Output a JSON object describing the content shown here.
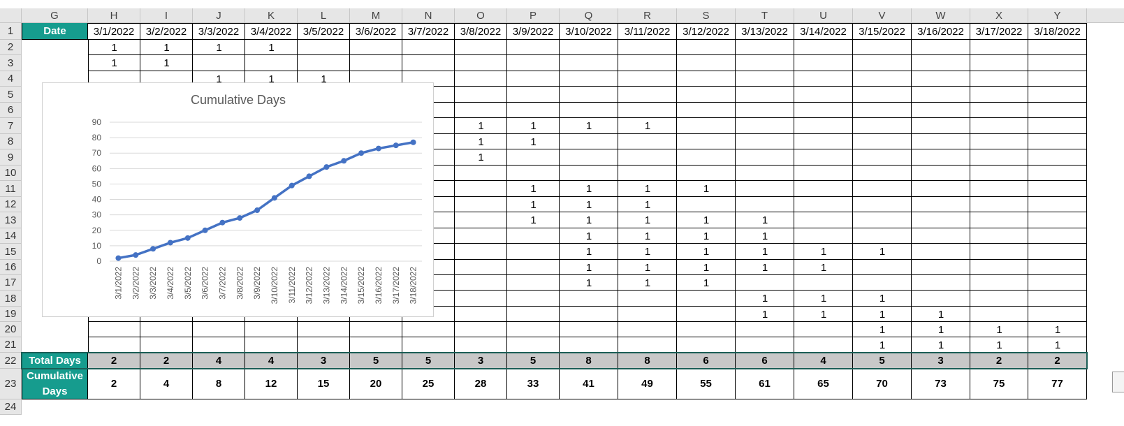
{
  "columns": [
    "G",
    "H",
    "I",
    "J",
    "K",
    "L",
    "M",
    "N",
    "O",
    "P",
    "Q",
    "R",
    "S",
    "T",
    "U",
    "V",
    "W",
    "X",
    "Y"
  ],
  "rows": [
    "1",
    "2",
    "3",
    "4",
    "5",
    "6",
    "7",
    "8",
    "9",
    "10",
    "11",
    "12",
    "13",
    "14",
    "15",
    "16",
    "17",
    "18",
    "19",
    "20",
    "21",
    "22",
    "23",
    "24"
  ],
  "date_label": "Date",
  "dates": [
    "3/1/2022",
    "3/2/2022",
    "3/3/2022",
    "3/4/2022",
    "3/5/2022",
    "3/6/2022",
    "3/7/2022",
    "3/8/2022",
    "3/9/2022",
    "3/10/2022",
    "3/11/2022",
    "3/12/2022",
    "3/13/2022",
    "3/14/2022",
    "3/15/2022",
    "3/16/2022",
    "3/17/2022",
    "3/18/2022"
  ],
  "ones": [
    {
      "row": 2,
      "col": 0,
      "value": "1"
    },
    {
      "row": 2,
      "col": 1,
      "value": "1"
    },
    {
      "row": 2,
      "col": 2,
      "value": "1"
    },
    {
      "row": 2,
      "col": 3,
      "value": "1"
    },
    {
      "row": 3,
      "col": 0,
      "value": "1"
    },
    {
      "row": 3,
      "col": 1,
      "value": "1"
    },
    {
      "row": 4,
      "col": 2,
      "value": "1"
    },
    {
      "row": 4,
      "col": 3,
      "value": "1"
    },
    {
      "row": 4,
      "col": 4,
      "value": "1"
    },
    {
      "row": 7,
      "col": 7,
      "value": "1"
    },
    {
      "row": 7,
      "col": 8,
      "value": "1"
    },
    {
      "row": 7,
      "col": 9,
      "value": "1"
    },
    {
      "row": 7,
      "col": 10,
      "value": "1"
    },
    {
      "row": 8,
      "col": 7,
      "value": "1"
    },
    {
      "row": 8,
      "col": 8,
      "value": "1"
    },
    {
      "row": 9,
      "col": 7,
      "value": "1"
    },
    {
      "row": 11,
      "col": 8,
      "value": "1"
    },
    {
      "row": 11,
      "col": 9,
      "value": "1"
    },
    {
      "row": 11,
      "col": 10,
      "value": "1"
    },
    {
      "row": 11,
      "col": 11,
      "value": "1"
    },
    {
      "row": 12,
      "col": 8,
      "value": "1"
    },
    {
      "row": 12,
      "col": 9,
      "value": "1"
    },
    {
      "row": 12,
      "col": 10,
      "value": "1"
    },
    {
      "row": 13,
      "col": 8,
      "value": "1"
    },
    {
      "row": 13,
      "col": 9,
      "value": "1"
    },
    {
      "row": 13,
      "col": 10,
      "value": "1"
    },
    {
      "row": 13,
      "col": 11,
      "value": "1"
    },
    {
      "row": 13,
      "col": 12,
      "value": "1"
    },
    {
      "row": 14,
      "col": 9,
      "value": "1"
    },
    {
      "row": 14,
      "col": 10,
      "value": "1"
    },
    {
      "row": 14,
      "col": 11,
      "value": "1"
    },
    {
      "row": 14,
      "col": 12,
      "value": "1"
    },
    {
      "row": 15,
      "col": 9,
      "value": "1"
    },
    {
      "row": 15,
      "col": 10,
      "value": "1"
    },
    {
      "row": 15,
      "col": 11,
      "value": "1"
    },
    {
      "row": 15,
      "col": 12,
      "value": "1"
    },
    {
      "row": 15,
      "col": 13,
      "value": "1"
    },
    {
      "row": 15,
      "col": 14,
      "value": "1"
    },
    {
      "row": 16,
      "col": 9,
      "value": "1"
    },
    {
      "row": 16,
      "col": 10,
      "value": "1"
    },
    {
      "row": 16,
      "col": 11,
      "value": "1"
    },
    {
      "row": 16,
      "col": 12,
      "value": "1"
    },
    {
      "row": 16,
      "col": 13,
      "value": "1"
    },
    {
      "row": 17,
      "col": 9,
      "value": "1"
    },
    {
      "row": 17,
      "col": 10,
      "value": "1"
    },
    {
      "row": 17,
      "col": 11,
      "value": "1"
    },
    {
      "row": 18,
      "col": 12,
      "value": "1"
    },
    {
      "row": 18,
      "col": 13,
      "value": "1"
    },
    {
      "row": 18,
      "col": 14,
      "value": "1"
    },
    {
      "row": 19,
      "col": 12,
      "value": "1"
    },
    {
      "row": 19,
      "col": 13,
      "value": "1"
    },
    {
      "row": 19,
      "col": 14,
      "value": "1"
    },
    {
      "row": 19,
      "col": 15,
      "value": "1"
    },
    {
      "row": 20,
      "col": 14,
      "value": "1"
    },
    {
      "row": 20,
      "col": 15,
      "value": "1"
    },
    {
      "row": 20,
      "col": 16,
      "value": "1"
    },
    {
      "row": 20,
      "col": 17,
      "value": "1"
    },
    {
      "row": 21,
      "col": 14,
      "value": "1"
    },
    {
      "row": 21,
      "col": 15,
      "value": "1"
    },
    {
      "row": 21,
      "col": 16,
      "value": "1"
    },
    {
      "row": 21,
      "col": 17,
      "value": "1"
    }
  ],
  "total_label": "Total Days",
  "totals": [
    "2",
    "2",
    "4",
    "4",
    "3",
    "5",
    "5",
    "3",
    "5",
    "8",
    "8",
    "6",
    "6",
    "4",
    "5",
    "3",
    "2",
    "2"
  ],
  "cumulative_label_line1": "Cumulative",
  "cumulative_label_line2": "Days",
  "cumulative": [
    "2",
    "4",
    "8",
    "12",
    "15",
    "20",
    "25",
    "28",
    "33",
    "41",
    "49",
    "55",
    "61",
    "65",
    "70",
    "73",
    "75",
    "77"
  ],
  "colors": {
    "teal": "#169c8e",
    "line": "#4472c4",
    "total_fill": "#c8c8c8"
  },
  "chart_data": {
    "type": "line",
    "title": "Cumulative Days",
    "xlabel": "",
    "ylabel": "",
    "categories": [
      "3/1/2022",
      "3/2/2022",
      "3/3/2022",
      "3/4/2022",
      "3/5/2022",
      "3/6/2022",
      "3/7/2022",
      "3/8/2022",
      "3/9/2022",
      "3/10/2022",
      "3/11/2022",
      "3/12/2022",
      "3/13/2022",
      "3/14/2022",
      "3/15/2022",
      "3/16/2022",
      "3/17/2022",
      "3/18/2022"
    ],
    "series": [
      {
        "values": [
          2,
          4,
          8,
          12,
          15,
          20,
          25,
          28,
          33,
          41,
          49,
          55,
          61,
          65,
          70,
          73,
          75,
          77
        ]
      }
    ],
    "ylim": [
      0,
      90
    ],
    "yticks": [
      "0",
      "10",
      "20",
      "30",
      "40",
      "50",
      "60",
      "70",
      "80",
      "90"
    ],
    "grid": true,
    "legend": "none"
  }
}
